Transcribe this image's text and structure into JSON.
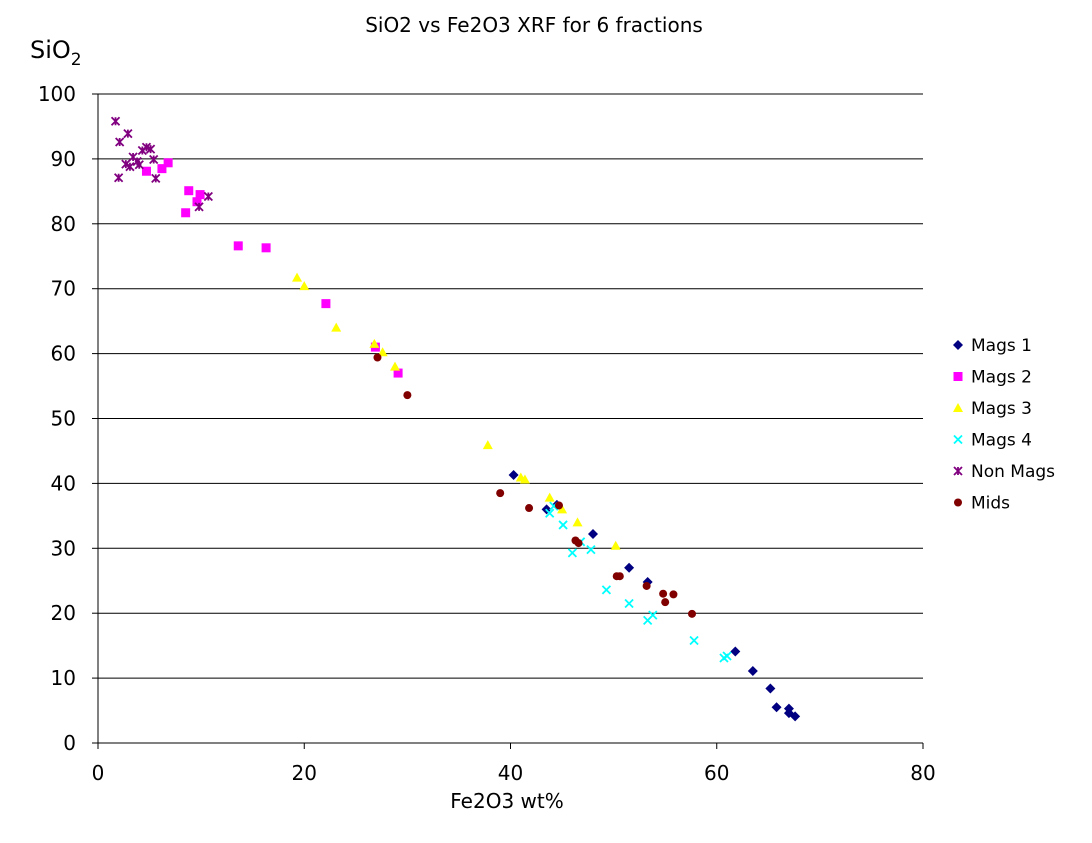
{
  "chart_data": {
    "type": "scatter",
    "title": "SiO2 vs Fe2O3 XRF for 6 fractions",
    "xlabel": "Fe2O3 wt%",
    "ylabel": "SiO",
    "ylabel_sub": "2",
    "xlim": [
      0,
      80
    ],
    "ylim": [
      0,
      100
    ],
    "xticks": [
      "0",
      "20",
      "40",
      "60",
      "80"
    ],
    "yticks": [
      "0",
      "10",
      "20",
      "30",
      "40",
      "50",
      "60",
      "70",
      "80",
      "90",
      "100"
    ],
    "grid": "horizontal",
    "legend_position": "right",
    "series": [
      {
        "name": "Mags 1",
        "marker": "diamond",
        "color": "#000080",
        "points": [
          [
            40.3,
            41.3
          ],
          [
            43.5,
            36
          ],
          [
            44.5,
            36.7
          ],
          [
            48,
            32.2
          ],
          [
            51.5,
            27
          ],
          [
            53.3,
            24.8
          ],
          [
            61.8,
            14.1
          ],
          [
            63.5,
            11.1
          ],
          [
            65.2,
            8.4
          ],
          [
            65.8,
            5.5
          ],
          [
            67,
            5.3
          ],
          [
            67,
            4.6
          ],
          [
            67.6,
            4.1
          ]
        ]
      },
      {
        "name": "Mags 2",
        "marker": "square",
        "color": "#ff00ff",
        "points": [
          [
            4.7,
            88.1
          ],
          [
            6.2,
            88.5
          ],
          [
            6.8,
            89.4
          ],
          [
            8.8,
            85.1
          ],
          [
            8.5,
            81.7
          ],
          [
            9.6,
            83.4
          ],
          [
            9.9,
            84.5
          ],
          [
            13.6,
            76.6
          ],
          [
            16.3,
            76.3
          ],
          [
            22.1,
            67.7
          ],
          [
            26.9,
            61
          ],
          [
            29.1,
            57
          ]
        ]
      },
      {
        "name": "Mags 3",
        "marker": "triangle",
        "color": "#ffff00",
        "points": [
          [
            19.3,
            71.7
          ],
          [
            20,
            70.4
          ],
          [
            23.1,
            64
          ],
          [
            26.8,
            61.5
          ],
          [
            27.6,
            60.2
          ],
          [
            28.8,
            58
          ],
          [
            37.8,
            45.9
          ],
          [
            41,
            40.9
          ],
          [
            41.4,
            40.6
          ],
          [
            43.8,
            37.8
          ],
          [
            45,
            36
          ],
          [
            46.5,
            34
          ],
          [
            50.2,
            30.4
          ]
        ]
      },
      {
        "name": "Mags 4",
        "marker": "x",
        "color": "#00ffff",
        "points": [
          [
            43.8,
            35.4
          ],
          [
            44.2,
            36.5
          ],
          [
            45.1,
            33.6
          ],
          [
            46,
            29.3
          ],
          [
            46.8,
            31
          ],
          [
            47.8,
            29.8
          ],
          [
            49.3,
            23.6
          ],
          [
            51.5,
            21.5
          ],
          [
            53.3,
            18.9
          ],
          [
            53.8,
            19.7
          ],
          [
            57.8,
            15.8
          ],
          [
            60.7,
            13.1
          ],
          [
            61,
            13.4
          ]
        ]
      },
      {
        "name": "Non Mags",
        "marker": "star",
        "color": "#800080",
        "points": [
          [
            1.7,
            95.8
          ],
          [
            2.1,
            92.6
          ],
          [
            2,
            87.1
          ],
          [
            2.7,
            89.2
          ],
          [
            2.9,
            93.9
          ],
          [
            3.1,
            88.8
          ],
          [
            3.4,
            90.3
          ],
          [
            3.8,
            89.6
          ],
          [
            4,
            89.1
          ],
          [
            4.3,
            91.3
          ],
          [
            4.7,
            91.8
          ],
          [
            5.1,
            91.5
          ],
          [
            5.4,
            89.9
          ],
          [
            5.6,
            87
          ],
          [
            9.8,
            82.6
          ],
          [
            10.7,
            84.2
          ]
        ]
      },
      {
        "name": "Mids",
        "marker": "circle",
        "color": "#800000",
        "points": [
          [
            27.1,
            59.4
          ],
          [
            30,
            53.6
          ],
          [
            39,
            38.5
          ],
          [
            41.8,
            36.2
          ],
          [
            44.7,
            36.6
          ],
          [
            46.3,
            31.2
          ],
          [
            46.6,
            30.8
          ],
          [
            50.3,
            25.7
          ],
          [
            50.6,
            25.7
          ],
          [
            53.2,
            24.2
          ],
          [
            54.8,
            23
          ],
          [
            55,
            21.7
          ],
          [
            55.8,
            22.9
          ],
          [
            57.6,
            19.9
          ]
        ]
      }
    ]
  }
}
